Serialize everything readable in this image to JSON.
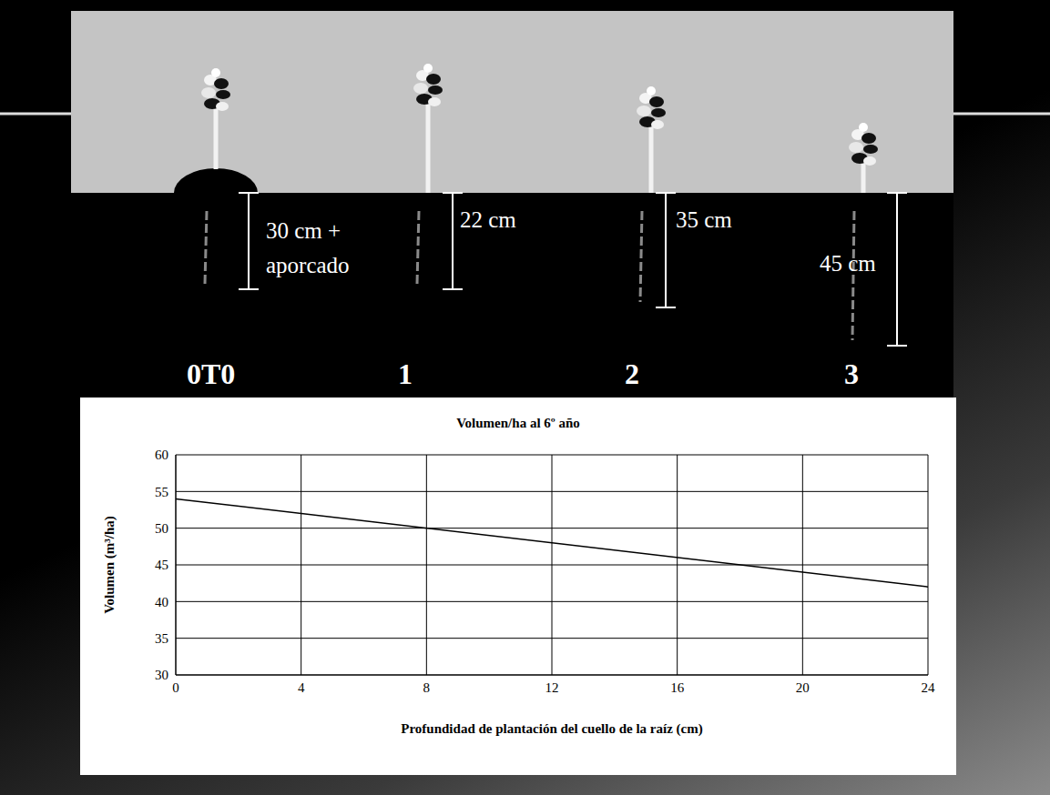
{
  "diagram": {
    "plants": [
      {
        "label": "0T0",
        "depth_label": "30 cm + aporcado"
      },
      {
        "label": "1",
        "depth_label": "22 cm"
      },
      {
        "label": "2",
        "depth_label": "35 cm"
      },
      {
        "label": "3",
        "depth_label": "45 cm"
      }
    ]
  },
  "chart_data": {
    "type": "line",
    "title": "Volumen/ha al 6º año",
    "x_label": "Profundidad de plantación del cuello de la raíz (cm)",
    "y_label": "Volumen (m³/ha)",
    "x": [
      0,
      24
    ],
    "values": [
      54,
      42
    ],
    "color": "#000000",
    "xlim": [
      0,
      24
    ],
    "xticks": [
      0,
      4,
      8,
      12,
      16,
      20,
      24
    ],
    "ylim": [
      30,
      60
    ],
    "yticks": [
      30,
      35,
      40,
      45,
      50,
      55,
      60
    ],
    "grid": true
  }
}
